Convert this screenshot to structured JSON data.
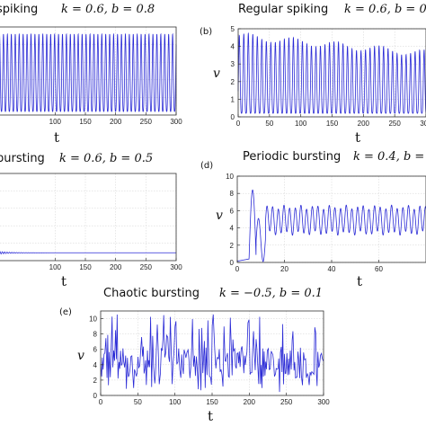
{
  "figure_title": "",
  "chart_data": [
    {
      "id": "a",
      "type": "line",
      "panel_label": "",
      "title": "Tonic spiking",
      "title_shown": "spiking",
      "params": "k = 0.6, b = 0.8",
      "xlabel": "t",
      "ylabel": "",
      "xlim": [
        0,
        300
      ],
      "ylim": [
        0,
        5
      ],
      "xticks": [
        100,
        150,
        200,
        250,
        300
      ],
      "yticks": [],
      "grid": true,
      "pattern": {
        "kind": "tonic",
        "period": 6.5,
        "peak": 4.6,
        "base": 0.2,
        "start": 0
      }
    },
    {
      "id": "b",
      "type": "line",
      "panel_label": "(b)",
      "title": "Regular spiking",
      "params": "k = 0.6, b = 0",
      "xlabel": "t",
      "ylabel": "v",
      "xlim": [
        0,
        300
      ],
      "ylim": [
        0,
        5
      ],
      "xticks": [
        0,
        50,
        100,
        150,
        200,
        250,
        300
      ],
      "yticks": [
        0,
        1,
        2,
        3,
        4,
        5
      ],
      "grid": true,
      "pattern": {
        "kind": "regular",
        "period": 7.2,
        "peak": 4.6,
        "peak_end": 3.6,
        "base": 0.2,
        "start": 0
      }
    },
    {
      "id": "c",
      "type": "line",
      "panel_label": "",
      "title": "Tonic bursting",
      "title_shown": "bursting",
      "params": "k = 0.6, b = 0.5",
      "xlabel": "t",
      "ylabel": "",
      "xlim": [
        0,
        300
      ],
      "ylim": [
        0,
        5
      ],
      "xticks": [
        100,
        150,
        200,
        250,
        300
      ],
      "yticks": [],
      "grid": true,
      "pattern": {
        "kind": "damped",
        "level": 0.45,
        "amp": 0.12
      }
    },
    {
      "id": "d",
      "type": "line",
      "panel_label": "(d)",
      "title": "Periodic bursting",
      "params": "k = 0.4, b =",
      "xlabel": "t",
      "ylabel": "v",
      "xlim": [
        0,
        80
      ],
      "ylim": [
        0,
        10
      ],
      "xticks": [
        0,
        20,
        40,
        60
      ],
      "yticks": [
        0,
        2,
        4,
        6,
        8,
        10
      ],
      "grid": true,
      "pattern": {
        "kind": "periodic",
        "period": 2.4,
        "mean": 4.9,
        "amp": 1.5,
        "start": 5
      }
    },
    {
      "id": "e",
      "type": "line",
      "panel_label": "(e)",
      "title": "Chaotic bursting",
      "params": "k = −0.5, b = 0.1",
      "xlabel": "t",
      "ylabel": "v",
      "xlim": [
        0,
        300
      ],
      "ylim": [
        0,
        11
      ],
      "xticks": [
        0,
        50,
        100,
        150,
        200,
        250,
        300
      ],
      "yticks": [
        0,
        2,
        4,
        6,
        8,
        10
      ],
      "grid": true,
      "pattern": {
        "kind": "chaotic",
        "mean": 4.0,
        "max": 10.6,
        "min": 0.4
      }
    }
  ]
}
